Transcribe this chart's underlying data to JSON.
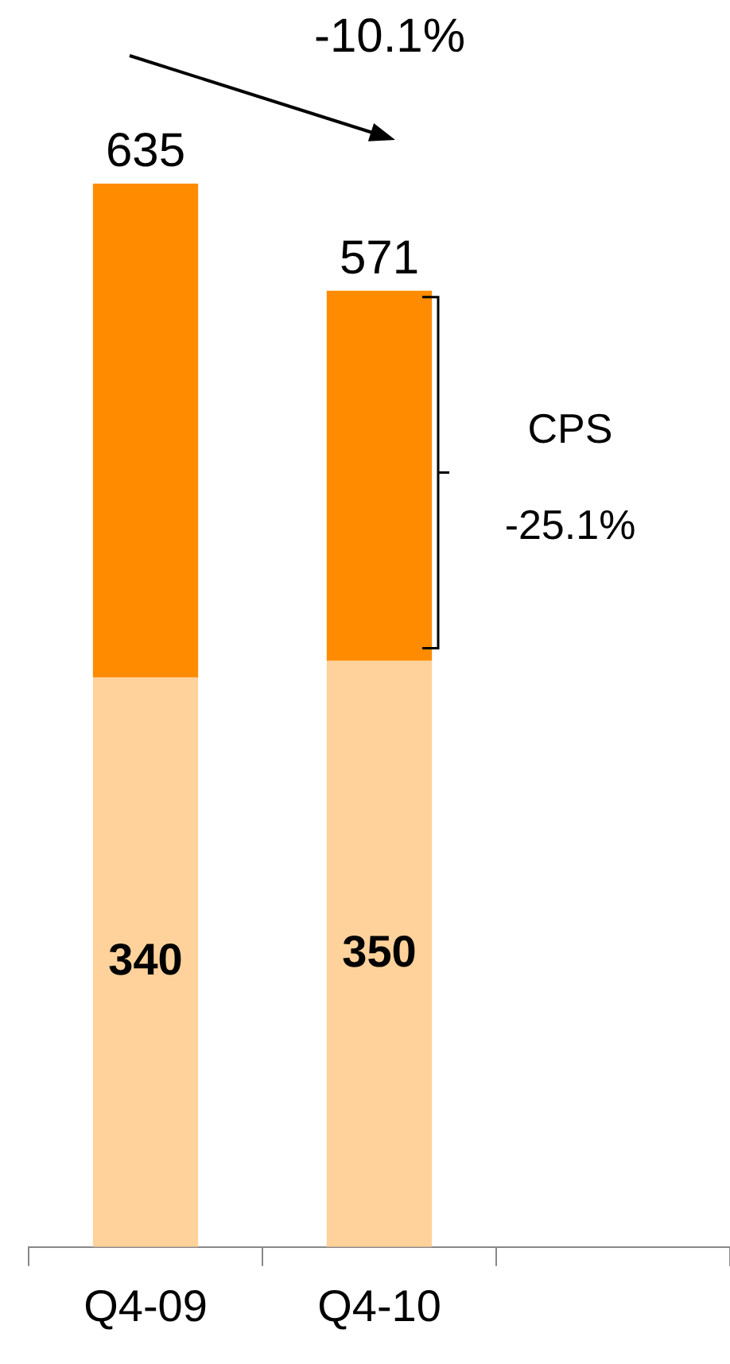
{
  "chart_data": {
    "type": "bar",
    "stacked": true,
    "categories": [
      "Q4-09",
      "Q4-10",
      null
    ],
    "series": [
      {
        "color": "#ffd29b",
        "values": [
          340,
          350,
          null
        ],
        "value_labels": [
          "340",
          "350",
          null
        ]
      },
      {
        "color": "#ff8c00",
        "values": [
          295,
          221,
          null
        ]
      }
    ],
    "totals": [
      "635",
      "571",
      null
    ],
    "tick_labels": "x",
    "grid": false,
    "legend": false,
    "annotations": [
      "-10.1%",
      "CPS",
      "-25.1%"
    ]
  }
}
